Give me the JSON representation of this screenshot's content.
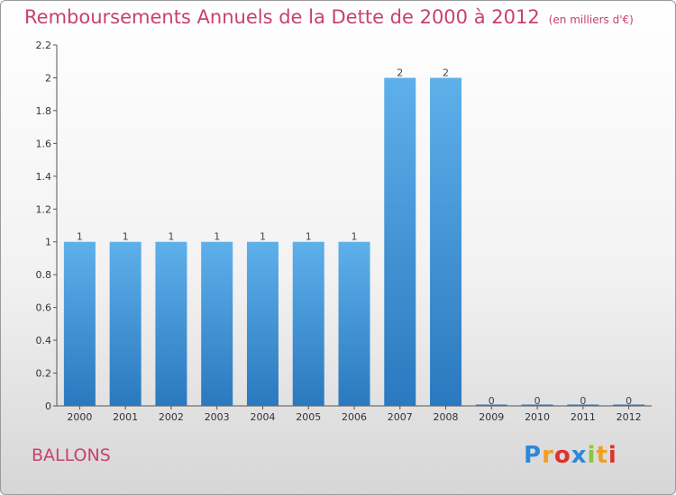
{
  "chart_data": {
    "type": "bar",
    "title": "Remboursements Annuels de la Dette de 2000 à 2012",
    "unit": "(en milliers d'€)",
    "categories": [
      "2000",
      "2001",
      "2002",
      "2003",
      "2004",
      "2005",
      "2006",
      "2007",
      "2008",
      "2009",
      "2010",
      "2011",
      "2012"
    ],
    "values": [
      1,
      1,
      1,
      1,
      1,
      1,
      1,
      2,
      2,
      0,
      0,
      0,
      0
    ],
    "data_labels": [
      "1",
      "1",
      "1",
      "1",
      "1",
      "1",
      "1",
      "2",
      "2",
      "0",
      "0",
      "0",
      "0"
    ],
    "yticks": [
      "0",
      "0.2",
      "0.4",
      "0.6",
      "0.8",
      "1",
      "1.2",
      "1.4",
      "1.6",
      "1.8",
      "2",
      "2.2"
    ],
    "ylim": [
      0,
      2.2
    ],
    "xlabel": "",
    "ylabel": "",
    "grid": false,
    "bar_color": "#3a8fd6",
    "text_color": "#c8416e"
  },
  "commune": "BALLONS",
  "brand": [
    "P",
    "r",
    "o",
    "x",
    "i",
    "t",
    "i"
  ]
}
